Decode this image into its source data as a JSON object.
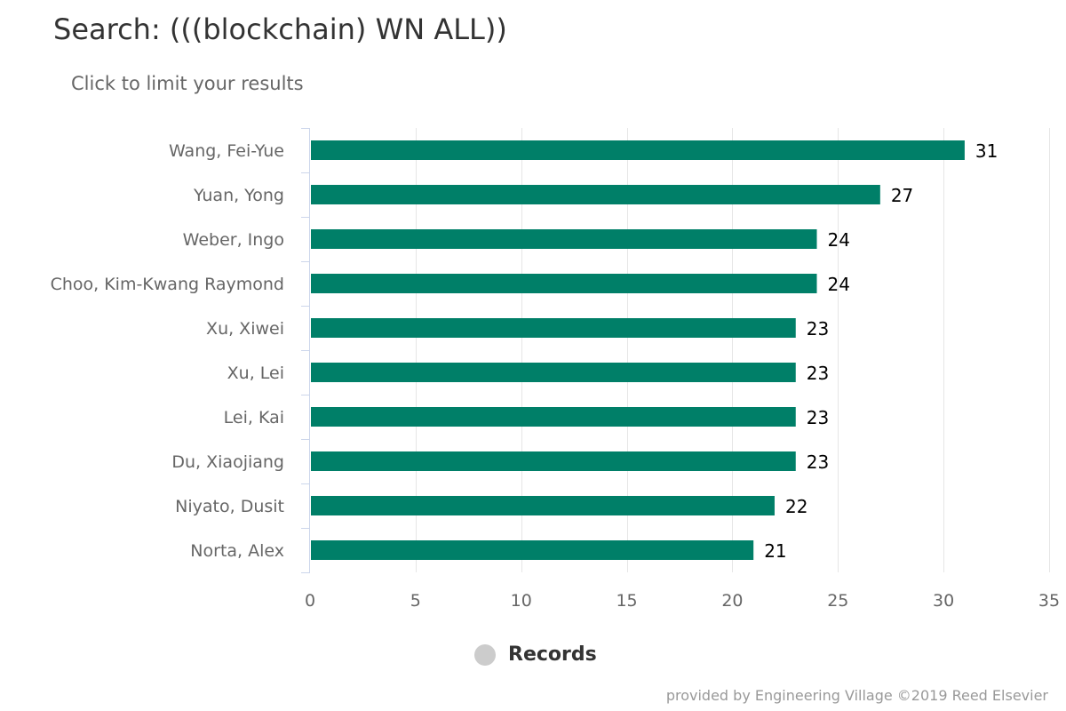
{
  "chart_data": {
    "type": "bar",
    "orientation": "horizontal",
    "title": "Search: (((blockchain) WN ALL))",
    "subtitle": "Click to limit your results",
    "categories": [
      "Wang, Fei-Yue",
      "Yuan, Yong",
      "Weber, Ingo",
      "Choo, Kim-Kwang Raymond",
      "Xu, Xiwei",
      "Xu, Lei",
      "Lei, Kai",
      "Du, Xiaojiang",
      "Niyato, Dusit",
      "Norta, Alex"
    ],
    "series": [
      {
        "name": "Records",
        "values": [
          31,
          27,
          24,
          24,
          23,
          23,
          23,
          23,
          22,
          21
        ]
      }
    ],
    "xlim": [
      0,
      35
    ],
    "xticks": [
      0,
      5,
      10,
      15,
      20,
      25,
      30,
      35
    ],
    "xlabel": "",
    "ylabel": "",
    "grid": true,
    "data_labels": true,
    "legend_position": "bottom-center",
    "bar_color": "#007f68",
    "legend_marker_color": "#cccccc",
    "credits": "provided by Engineering Village ©2019 Reed Elsevier"
  }
}
